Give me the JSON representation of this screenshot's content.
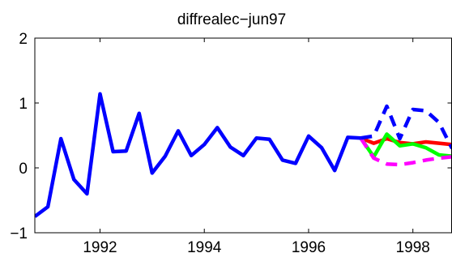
{
  "chart_data": {
    "type": "line",
    "title": "diffrealec−jun97",
    "xlabel": "",
    "ylabel": "",
    "xlim": [
      1990.75,
      1998.75
    ],
    "ylim": [
      -1,
      2
    ],
    "grid": false,
    "xticks": [
      1992,
      1994,
      1996,
      1998
    ],
    "xtick_labels": [
      "1992",
      "1994",
      "1996",
      "1998"
    ],
    "yticks": [
      -1,
      0,
      1,
      2
    ],
    "ytick_labels": [
      "−1",
      "0",
      "1",
      "2"
    ],
    "series": [
      {
        "color": "#0000ff",
        "style": "solid",
        "x": [
          1990.75,
          1991.0,
          1991.25,
          1991.5,
          1991.75,
          1992.0,
          1992.25,
          1992.5,
          1992.75,
          1993.0,
          1993.25,
          1993.5,
          1993.75,
          1994.0,
          1994.25,
          1994.5,
          1994.75,
          1995.0,
          1995.25,
          1995.5,
          1995.75,
          1996.0,
          1996.25,
          1996.5,
          1996.75,
          1997.0
        ],
        "y": [
          -0.75,
          -0.6,
          0.45,
          -0.18,
          -0.4,
          1.14,
          0.25,
          0.26,
          0.84,
          -0.08,
          0.18,
          0.57,
          0.19,
          0.36,
          0.62,
          0.32,
          0.19,
          0.46,
          0.44,
          0.12,
          0.07,
          0.49,
          0.31,
          -0.04,
          0.47,
          0.46
        ]
      },
      {
        "color": "#ff0000",
        "style": "solid",
        "x": [
          1997.0,
          1997.25,
          1997.5,
          1997.75,
          1998.0,
          1998.25,
          1998.5,
          1998.75
        ],
        "y": [
          0.46,
          0.38,
          0.45,
          0.39,
          0.37,
          0.4,
          0.38,
          0.36
        ]
      },
      {
        "color": "#00ff00",
        "style": "solid",
        "x": [
          1997.0,
          1997.25,
          1997.5,
          1997.75,
          1998.0,
          1998.25,
          1998.5,
          1998.75
        ],
        "y": [
          0.46,
          0.17,
          0.52,
          0.34,
          0.37,
          0.31,
          0.2,
          0.18
        ]
      },
      {
        "color": "#ff00ff",
        "style": "dashed",
        "x": [
          1997.0,
          1997.25,
          1997.5,
          1997.75,
          1998.0,
          1998.25,
          1998.5,
          1998.75
        ],
        "y": [
          0.46,
          0.15,
          0.06,
          0.05,
          0.08,
          0.12,
          0.15,
          0.17
        ]
      },
      {
        "color": "#0000ff",
        "style": "dashed",
        "x": [
          1997.0,
          1997.25,
          1997.5,
          1997.75,
          1998.0,
          1998.25,
          1998.5,
          1998.75
        ],
        "y": [
          0.46,
          0.49,
          0.95,
          0.45,
          0.9,
          0.88,
          0.7,
          0.3
        ]
      }
    ]
  }
}
